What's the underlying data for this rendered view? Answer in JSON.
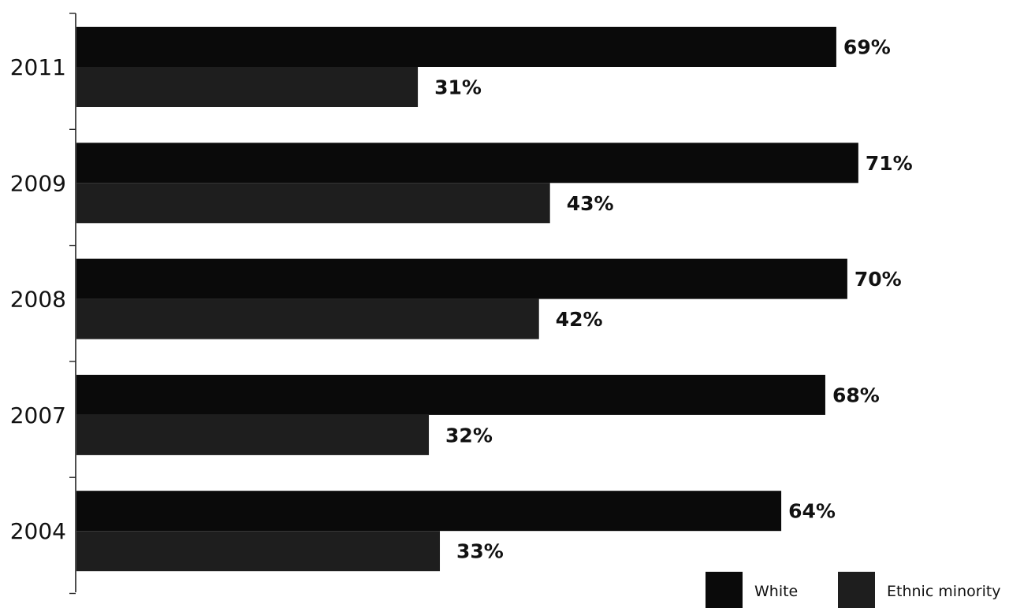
{
  "chart_data": {
    "type": "bar",
    "orientation": "horizontal",
    "categories": [
      "2011",
      "2009",
      "2008",
      "2007",
      "2004"
    ],
    "series": [
      {
        "name": "White",
        "values": [
          69,
          71,
          70,
          68,
          64
        ],
        "labels": [
          "69%",
          "71%",
          "70%",
          "68%",
          "64%"
        ],
        "color": "#0a0a0a"
      },
      {
        "name": "Ethnic minority",
        "values": [
          31,
          43,
          42,
          32,
          33
        ],
        "labels": [
          "31%",
          "43%",
          "42%",
          "32%",
          "33%"
        ],
        "color": "#1e1e1e"
      }
    ],
    "xlim": [
      0,
      100
    ],
    "grid": false,
    "legend": "bottom-right"
  }
}
